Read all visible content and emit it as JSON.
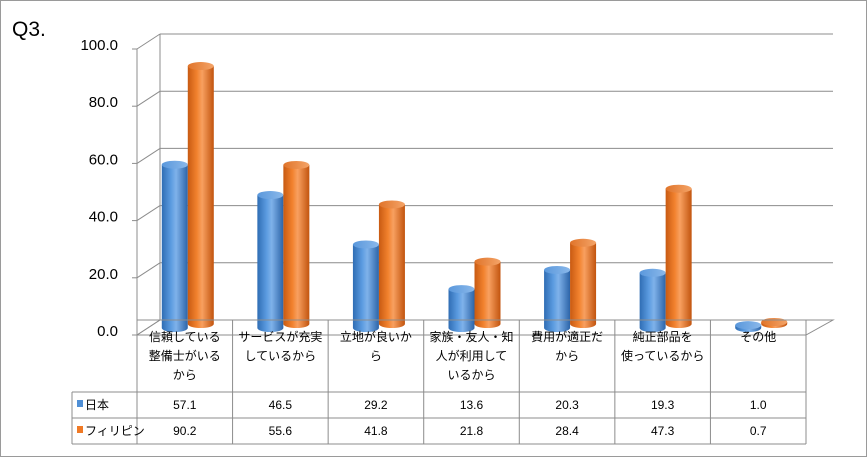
{
  "chart_data": {
    "type": "bar",
    "title": "Q3.",
    "categories": [
      "信頼している整備士がいるから",
      "サービスが充実しているから",
      "立地が良いから",
      "家族・友人・知人が利用しているから",
      "費用が適正だから",
      "純正部品を使っているから",
      "その他"
    ],
    "category_lines": [
      [
        "信頼している",
        "整備士がいる",
        "から"
      ],
      [
        "サービスが充実",
        "しているから"
      ],
      [
        "立地が良いか",
        "ら"
      ],
      [
        "家族・友人・知",
        "人が利用して",
        "いるから"
      ],
      [
        "費用が適正だ",
        "から"
      ],
      [
        "純正部品を",
        "使っているから"
      ],
      [
        "その他"
      ]
    ],
    "series": [
      {
        "name": "日本",
        "color": "#4f8fd6",
        "values": [
          57.1,
          46.5,
          29.2,
          13.6,
          20.3,
          19.3,
          1.0
        ],
        "labels": [
          "57.1",
          "46.5",
          "29.2",
          "13.6",
          "20.3",
          "19.3",
          "1.0"
        ]
      },
      {
        "name": "フィリピン",
        "color": "#f07a26",
        "values": [
          90.2,
          55.6,
          41.8,
          21.8,
          28.4,
          47.3,
          0.7
        ],
        "labels": [
          "90.2",
          "55.6",
          "41.8",
          "21.8",
          "28.4",
          "47.3",
          "0.7"
        ]
      }
    ],
    "y_ticks": [
      "0.0",
      "20.0",
      "40.0",
      "60.0",
      "80.0",
      "100.0"
    ],
    "ylim": [
      0,
      100
    ],
    "grid": true,
    "legend": "data-table",
    "style": "3d-cylinder"
  }
}
